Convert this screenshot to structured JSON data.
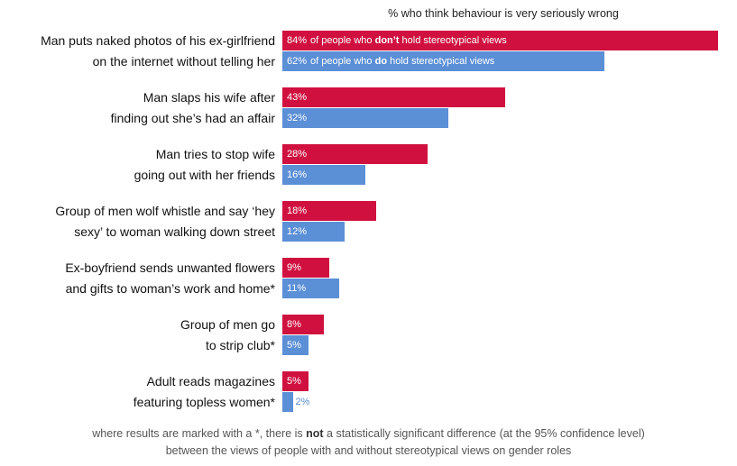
{
  "chart_data": {
    "type": "bar",
    "orientation": "horizontal",
    "title": "% who think behaviour is very seriously wrong",
    "xlim": [
      0,
      100
    ],
    "categories": [
      [
        "Man puts naked photos of his ex-girlfriend",
        "on the internet without telling her"
      ],
      [
        "Man slaps his wife after",
        "finding out she’s had an affair"
      ],
      [
        "Man tries to stop wife",
        "going out with her friends"
      ],
      [
        "Group of men wolf whistle and say ‘hey",
        "sexy’ to woman walking down street"
      ],
      [
        "Ex-boyfriend sends unwanted flowers",
        "and gifts to woman’s work and home*"
      ],
      [
        "Group of men go",
        "to strip club*"
      ],
      [
        "Adult reads magazines",
        "featuring topless women*"
      ]
    ],
    "series": [
      {
        "name": [
          "of people who ",
          "don’t",
          " hold stereotypical views"
        ],
        "color": "#d01140",
        "values": [
          84,
          43,
          28,
          18,
          9,
          8,
          5
        ]
      },
      {
        "name": [
          "of people who ",
          "do",
          "  hold stereotypical views"
        ],
        "color": "#5b8fd6",
        "values": [
          62,
          32,
          16,
          12,
          11,
          5,
          2
        ]
      }
    ],
    "value_suffix": "%"
  },
  "footnote": {
    "line1_pre": "where results are marked with a *, there is ",
    "line1_bold": "not",
    "line1_post": " a statistically significant difference (at the 95% confidence level)",
    "line2": "between the views of people with and without stereotypical views on gender roles"
  }
}
